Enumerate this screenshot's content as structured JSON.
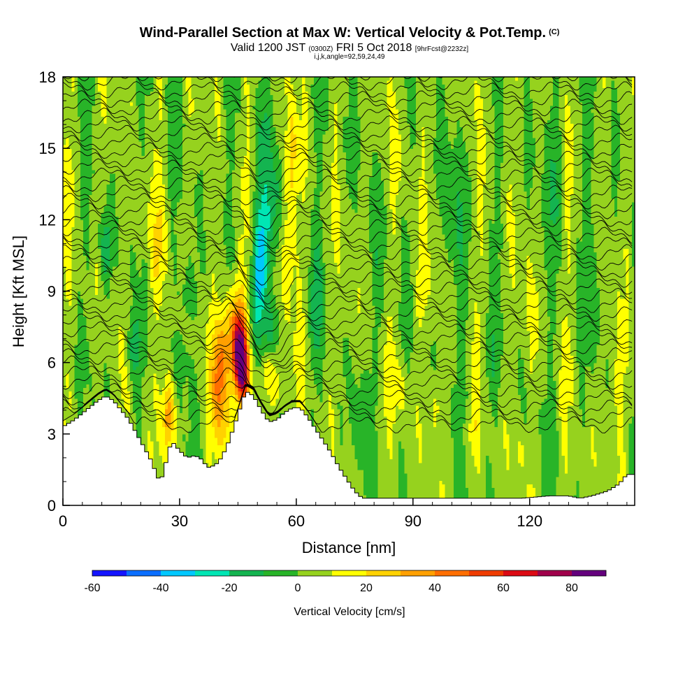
{
  "title": {
    "main": "Wind-Parallel Section at Max W: Vertical Velocity & Pot.Temp.",
    "copyright": "(C)",
    "valid_prefix": "Valid 1200 JST",
    "valid_utc": "(0300Z)",
    "valid_date": "FRI 5 Oct 2018",
    "forecast": "[9hrFcst@2232z]",
    "indices": "i,j,k,angle=92,59,24,49"
  },
  "chart_data": {
    "type": "heatmap",
    "xlabel": "Distance [nm]",
    "ylabel": "Height [Kft MSL]",
    "xlim": [
      0,
      147
    ],
    "ylim": [
      0,
      18
    ],
    "xticks": [
      0,
      30,
      60,
      90,
      120
    ],
    "yticks": [
      0,
      3,
      6,
      9,
      12,
      15,
      18
    ],
    "colorbar": {
      "label": "Vertical Velocity [cm/s]",
      "bounds": [
        -60,
        90
      ],
      "step": 10,
      "tick_labels": [
        -60,
        -40,
        -20,
        0,
        20,
        40,
        60,
        80
      ],
      "colors": [
        "#1414ff",
        "#0a6eff",
        "#00c8ff",
        "#00e6b4",
        "#14b450",
        "#28b428",
        "#96d21e",
        "#ffff00",
        "#ffd200",
        "#ffa000",
        "#ff6e00",
        "#f03c00",
        "#dc0a14",
        "#a0004b",
        "#64007d"
      ]
    },
    "terrain_top_kft": [
      [
        0,
        3.3
      ],
      [
        3,
        3.6
      ],
      [
        6,
        4.0
      ],
      [
        9,
        4.4
      ],
      [
        11,
        4.6
      ],
      [
        13,
        4.4
      ],
      [
        15,
        4.0
      ],
      [
        17,
        3.6
      ],
      [
        19,
        3.0
      ],
      [
        21,
        2.4
      ],
      [
        23,
        1.8
      ],
      [
        24,
        1.3
      ],
      [
        25,
        1.0
      ],
      [
        26,
        1.4
      ],
      [
        27,
        2.2
      ],
      [
        28,
        2.7
      ],
      [
        30,
        2.3
      ],
      [
        32,
        2.0
      ],
      [
        34,
        2.1
      ],
      [
        36,
        1.9
      ],
      [
        37,
        1.6
      ],
      [
        38,
        1.6
      ],
      [
        40,
        1.8
      ],
      [
        42,
        2.4
      ],
      [
        44,
        3.3
      ],
      [
        46,
        4.3
      ],
      [
        47,
        4.8
      ],
      [
        49,
        4.6
      ],
      [
        51,
        4.0
      ],
      [
        53,
        3.5
      ],
      [
        55,
        3.6
      ],
      [
        57,
        3.9
      ],
      [
        59,
        4.1
      ],
      [
        61,
        4.1
      ],
      [
        63,
        3.7
      ],
      [
        65,
        3.2
      ],
      [
        67,
        2.7
      ],
      [
        69,
        2.2
      ],
      [
        71,
        1.6
      ],
      [
        73,
        1.1
      ],
      [
        75,
        0.6
      ],
      [
        77,
        0.3
      ],
      [
        80,
        0.3
      ],
      [
        95,
        0.3
      ],
      [
        110,
        0.3
      ],
      [
        118,
        0.3
      ],
      [
        125,
        0.4
      ],
      [
        130,
        0.4
      ],
      [
        133,
        0.3
      ],
      [
        136,
        0.4
      ],
      [
        140,
        0.6
      ],
      [
        143,
        0.9
      ],
      [
        145,
        1.3
      ],
      [
        147,
        1.3
      ]
    ],
    "isentrope_label_count": 42
  }
}
